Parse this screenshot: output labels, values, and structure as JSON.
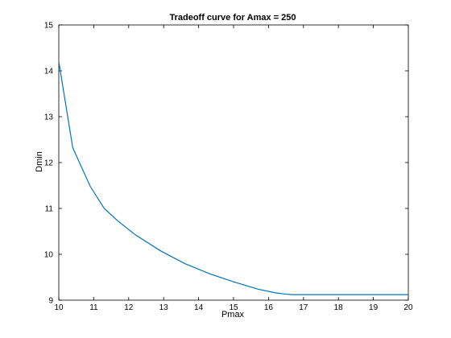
{
  "chart_data": {
    "type": "line",
    "title": "Tradeoff curve for Amax = 250",
    "xlabel": "Pmax",
    "ylabel": "Dmin",
    "xlim": [
      10,
      20
    ],
    "ylim": [
      9,
      15
    ],
    "xticks": [
      10,
      11,
      12,
      13,
      14,
      15,
      16,
      17,
      18,
      19,
      20
    ],
    "yticks": [
      9,
      10,
      11,
      12,
      13,
      14,
      15
    ],
    "grid": false,
    "series": [
      {
        "color": "#0072bd",
        "x": [
          10.0,
          10.4,
          10.9,
          11.3,
          11.7,
          12.2,
          12.9,
          13.6,
          14.3,
          15.0,
          15.7,
          16.2,
          16.5,
          16.7,
          17.0,
          18.0,
          19.0,
          20.0
        ],
        "y": [
          14.2,
          12.32,
          11.48,
          11.0,
          10.72,
          10.42,
          10.08,
          9.8,
          9.58,
          9.4,
          9.24,
          9.16,
          9.13,
          9.12,
          9.12,
          9.12,
          9.12,
          9.12
        ]
      }
    ]
  }
}
